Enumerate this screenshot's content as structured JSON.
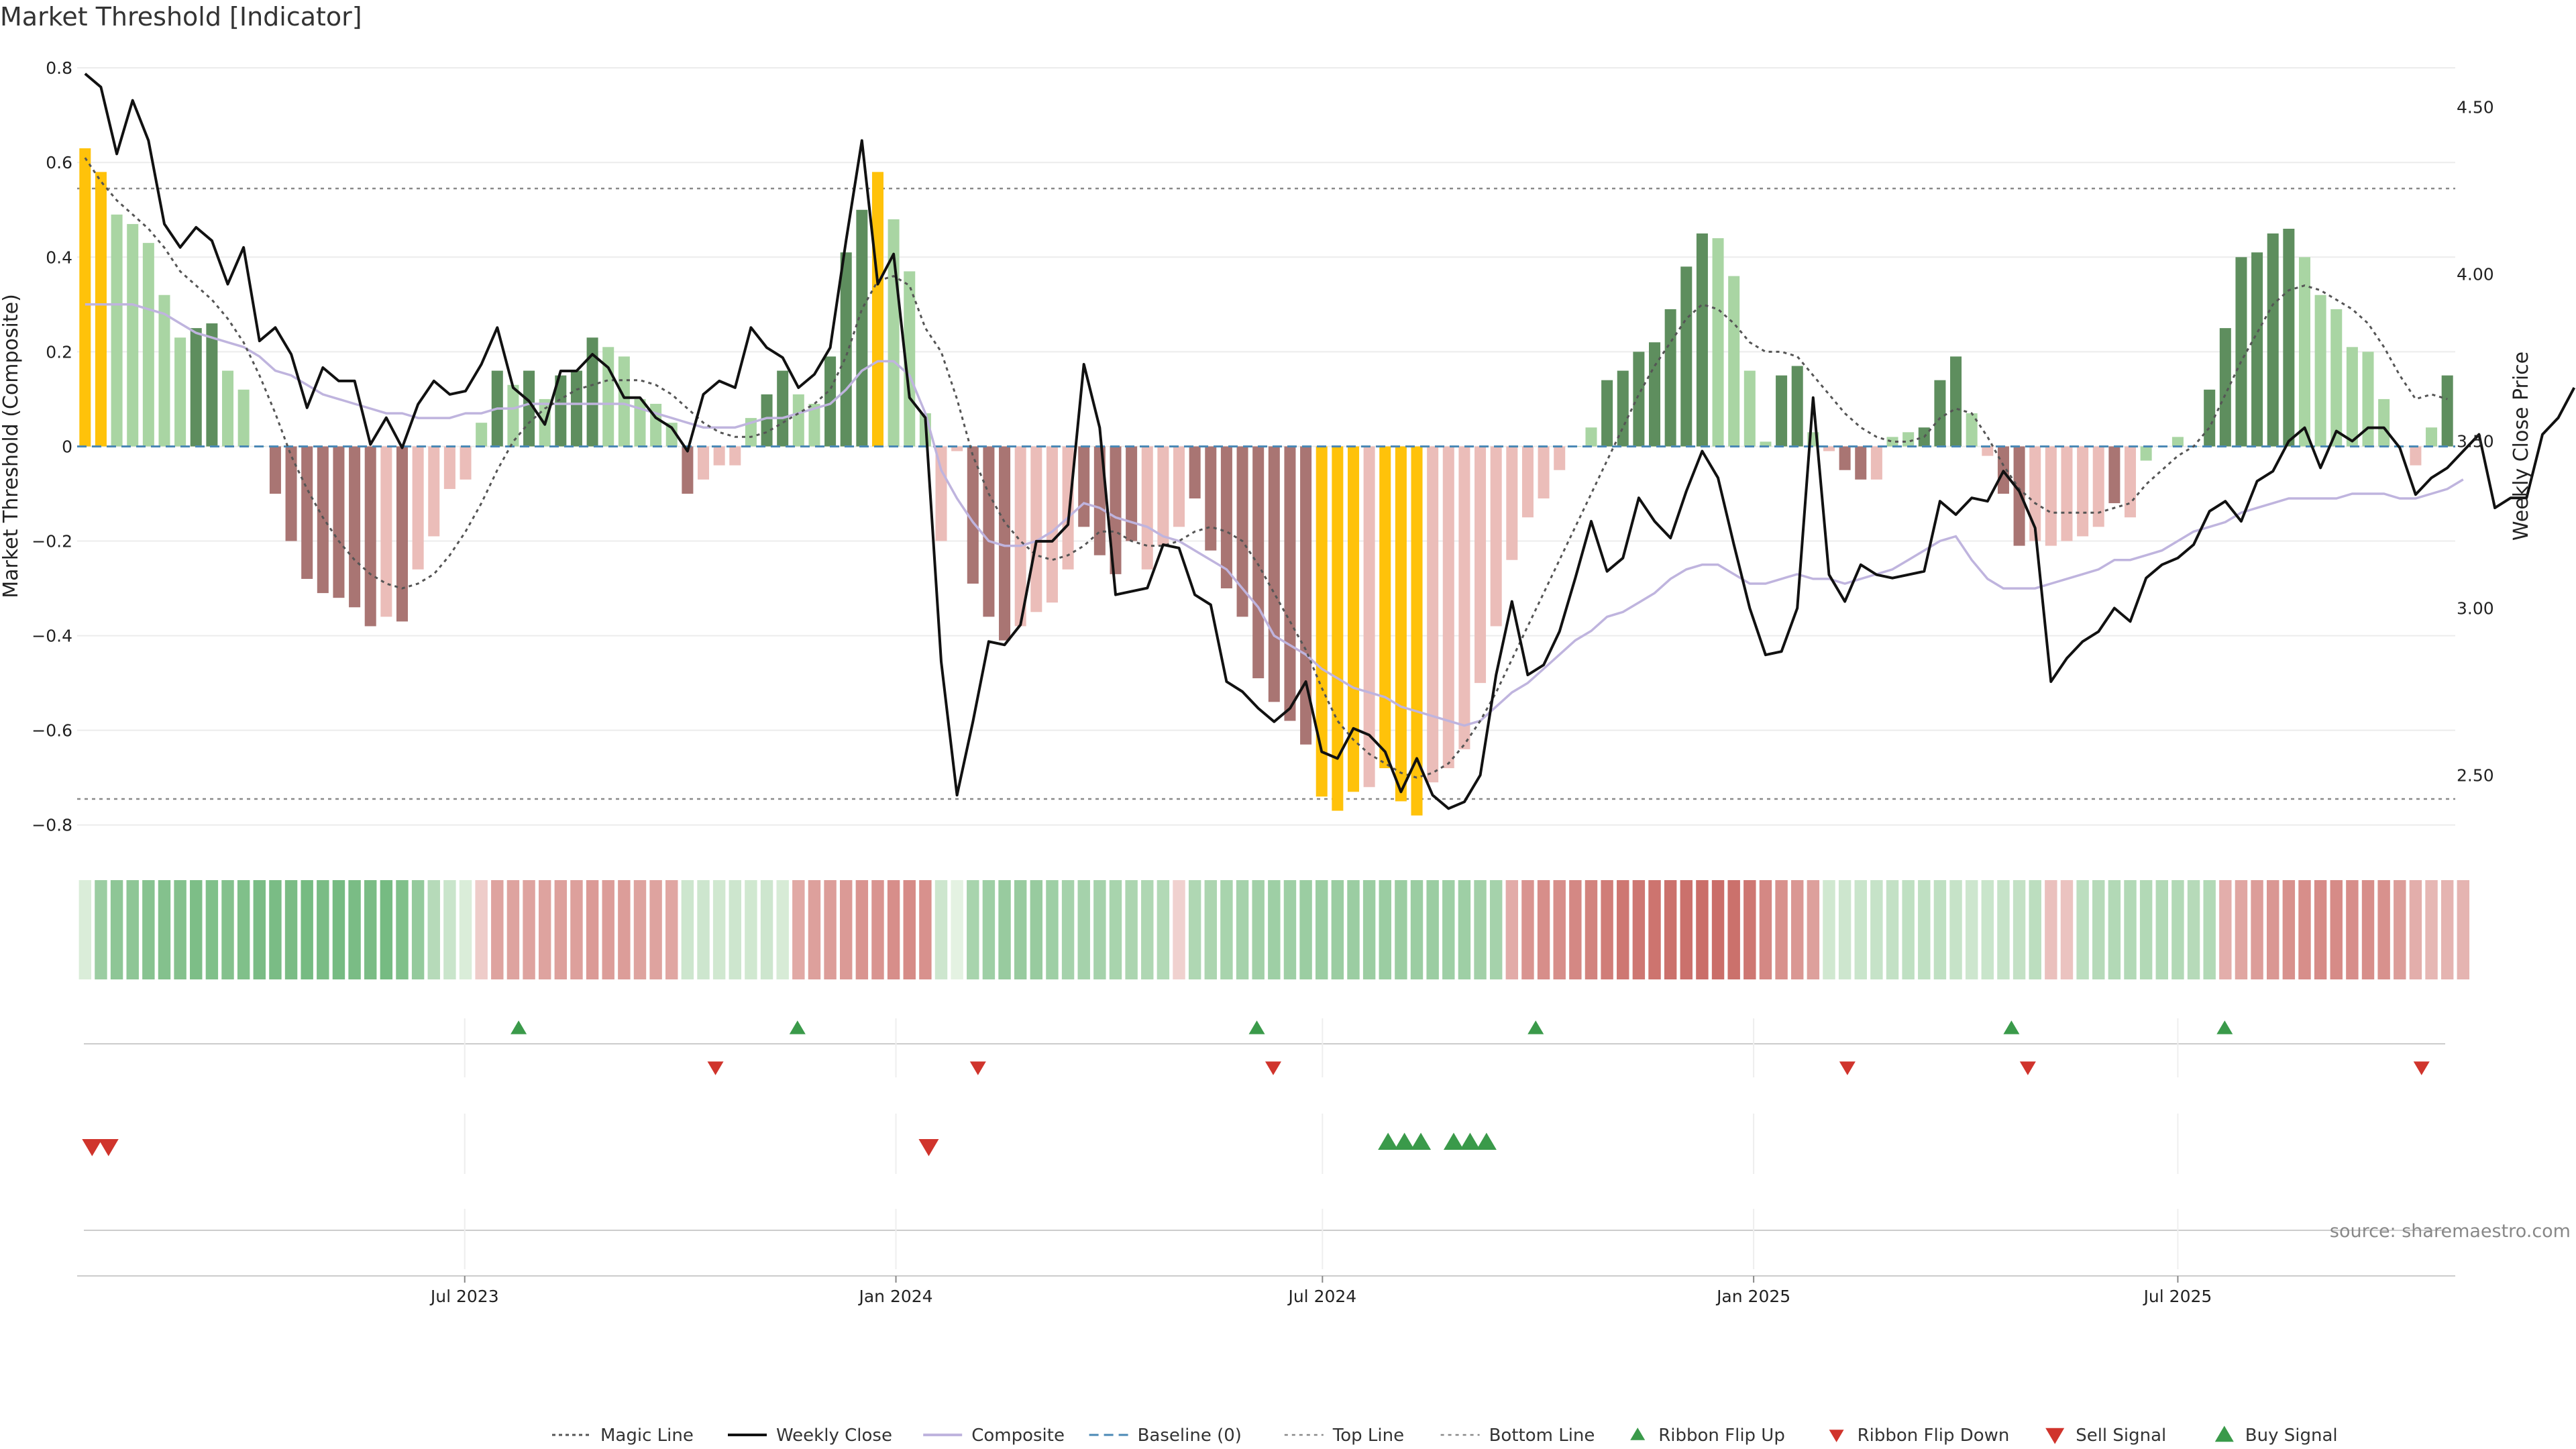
{
  "colors": {
    "yellow": "#FFC20A",
    "dark_green": "#5E8E5E",
    "light_green": "#A9D5A3",
    "dark_red": "#A97573",
    "light_red": "#EBBDB9",
    "weekly_close": "#111111",
    "composite": "#BFB4DE",
    "magic": "#555555",
    "baseline": "#4A88B5",
    "ribbon_flip_up": "#3A9A4A",
    "ribbon_flip_down": "#D0342C",
    "sell": "#D0342C",
    "buy": "#3A9A4A"
  },
  "chart_data": {
    "type": "bar",
    "title": "Market Threshold [Indicator]",
    "ylabel": "Market Threshold (Composite)",
    "y2label": "Weekly Close Price",
    "source": "source: sharemaestro.com",
    "ylim": [
      -0.85,
      0.83
    ],
    "y_ticks": [
      0.8,
      0.6,
      0.4,
      0.2,
      0,
      -0.2,
      -0.4,
      -0.6,
      -0.8
    ],
    "y_tick_labels": [
      "0.8",
      "0.6",
      "0.4",
      "0.2",
      "0",
      "−0.2",
      "−0.4",
      "−0.6",
      "−0.8"
    ],
    "y2lim": [
      2.28,
      4.66
    ],
    "y2_ticks": [
      4.5,
      4.0,
      3.5,
      3.0,
      2.5
    ],
    "y2_tick_labels": [
      "4.50",
      "4.00",
      "3.50",
      "3.00",
      "2.50"
    ],
    "x_start": "2023-01-20",
    "x_end": "2025-10-24",
    "x_ticks": [
      "2023-07-01",
      "2024-01-01",
      "2024-07-01",
      "2025-01-01",
      "2025-07-01"
    ],
    "x_tick_labels": [
      "Jul 2023",
      "Jan 2024",
      "Jul 2024",
      "Jan 2025",
      "Jul 2025"
    ],
    "top_line": 0.545,
    "bottom_line": -0.745,
    "baseline": 0,
    "composite": [
      0.63,
      0.58,
      0.49,
      0.47,
      0.43,
      0.32,
      0.23,
      0.25,
      0.26,
      0.16,
      0.12,
      0,
      -0.1,
      -0.2,
      -0.28,
      -0.31,
      -0.32,
      -0.34,
      -0.38,
      -0.36,
      -0.37,
      -0.26,
      -0.19,
      -0.09,
      -0.07,
      0.05,
      0.16,
      0.13,
      0.16,
      0.1,
      0.15,
      0.16,
      0.23,
      0.21,
      0.19,
      0.1,
      0.09,
      0.05,
      -0.1,
      -0.07,
      -0.04,
      -0.04,
      0.06,
      0.11,
      0.16,
      0.11,
      0.09,
      0.19,
      0.41,
      0.5,
      0.58,
      0.48,
      0.37,
      0.07,
      -0.2,
      -0.01,
      -0.29,
      -0.36,
      -0.41,
      -0.38,
      -0.35,
      -0.33,
      -0.26,
      -0.17,
      -0.23,
      -0.27,
      -0.2,
      -0.26,
      -0.21,
      -0.17,
      -0.11,
      -0.22,
      -0.3,
      -0.36,
      -0.49,
      -0.54,
      -0.58,
      -0.63,
      -0.74,
      -0.77,
      -0.73,
      -0.72,
      -0.68,
      -0.75,
      -0.78,
      -0.71,
      -0.68,
      -0.64,
      -0.5,
      -0.38,
      -0.24,
      -0.15,
      -0.11,
      -0.05,
      0,
      0.04,
      0.14,
      0.16,
      0.2,
      0.22,
      0.29,
      0.38,
      0.45,
      0.44,
      0.36,
      0.16,
      0.01,
      0.15,
      0.17,
      0.03,
      -0.01,
      -0.05,
      -0.07,
      -0.07,
      0.02,
      0.03,
      0.04,
      0.14,
      0.19,
      0.07,
      -0.02,
      -0.1,
      -0.21,
      -0.2,
      -0.21,
      -0.2,
      -0.19,
      -0.17,
      -0.12,
      -0.15,
      -0.03,
      0,
      0.02,
      0,
      0.12,
      0.25,
      0.4,
      0.41,
      0.45,
      0.46,
      0.4,
      0.32,
      0.29,
      0.21,
      0.2,
      0.1,
      0,
      -0.04,
      0.04,
      0.15
    ],
    "bar_colors": [
      "yellow",
      "yellow",
      "light_green",
      "light_green",
      "light_green",
      "light_green",
      "light_green",
      "dark_green",
      "dark_green",
      "light_green",
      "light_green",
      "light_green",
      "dark_red",
      "dark_red",
      "dark_red",
      "dark_red",
      "dark_red",
      "dark_red",
      "dark_red",
      "light_red",
      "dark_red",
      "light_red",
      "light_red",
      "light_red",
      "light_red",
      "light_green",
      "dark_green",
      "light_green",
      "dark_green",
      "light_green",
      "dark_green",
      "dark_green",
      "dark_green",
      "light_green",
      "light_green",
      "light_green",
      "light_green",
      "light_green",
      "dark_red",
      "light_red",
      "light_red",
      "light_red",
      "light_green",
      "dark_green",
      "dark_green",
      "light_green",
      "light_green",
      "dark_green",
      "dark_green",
      "dark_green",
      "yellow",
      "light_green",
      "light_green",
      "light_green",
      "light_red",
      "light_red",
      "dark_red",
      "dark_red",
      "dark_red",
      "light_red",
      "light_red",
      "light_red",
      "light_red",
      "dark_red",
      "dark_red",
      "dark_red",
      "dark_red",
      "light_red",
      "light_red",
      "light_red",
      "dark_red",
      "dark_red",
      "dark_red",
      "dark_red",
      "dark_red",
      "dark_red",
      "dark_red",
      "dark_red",
      "yellow",
      "yellow",
      "yellow",
      "light_red",
      "yellow",
      "yellow",
      "yellow",
      "light_red",
      "light_red",
      "light_red",
      "light_red",
      "light_red",
      "light_red",
      "light_red",
      "light_red",
      "light_red",
      "light_green",
      "light_green",
      "dark_green",
      "dark_green",
      "dark_green",
      "dark_green",
      "dark_green",
      "dark_green",
      "dark_green",
      "light_green",
      "light_green",
      "light_green",
      "light_green",
      "dark_green",
      "dark_green",
      "light_green",
      "light_red",
      "dark_red",
      "dark_red",
      "light_red",
      "light_green",
      "light_green",
      "dark_green",
      "dark_green",
      "dark_green",
      "light_green",
      "light_red",
      "dark_red",
      "dark_red",
      "light_red",
      "light_red",
      "light_red",
      "light_red",
      "light_red",
      "dark_red",
      "light_red",
      "light_green",
      "light_green",
      "light_green",
      "light_green",
      "dark_green",
      "dark_green",
      "dark_green",
      "dark_green",
      "dark_green",
      "dark_green",
      "light_green",
      "light_green",
      "light_green",
      "light_green",
      "light_green",
      "light_green",
      "light_green",
      "light_red",
      "light_green",
      "dark_green"
    ],
    "composite_smooth": [
      0.3,
      0.3,
      0.3,
      0.3,
      0.29,
      0.28,
      0.26,
      0.24,
      0.23,
      0.22,
      0.21,
      0.19,
      0.16,
      0.15,
      0.13,
      0.11,
      0.1,
      0.09,
      0.08,
      0.07,
      0.07,
      0.06,
      0.06,
      0.06,
      0.07,
      0.07,
      0.08,
      0.08,
      0.09,
      0.09,
      0.09,
      0.09,
      0.09,
      0.09,
      0.09,
      0.08,
      0.07,
      0.06,
      0.05,
      0.04,
      0.04,
      0.04,
      0.05,
      0.06,
      0.06,
      0.07,
      0.08,
      0.09,
      0.12,
      0.16,
      0.18,
      0.18,
      0.15,
      0.07,
      -0.05,
      -0.11,
      -0.16,
      -0.2,
      -0.21,
      -0.21,
      -0.2,
      -0.18,
      -0.15,
      -0.12,
      -0.13,
      -0.15,
      -0.16,
      -0.17,
      -0.19,
      -0.2,
      -0.22,
      -0.24,
      -0.26,
      -0.3,
      -0.34,
      -0.4,
      -0.42,
      -0.44,
      -0.47,
      -0.49,
      -0.51,
      -0.52,
      -0.53,
      -0.55,
      -0.56,
      -0.57,
      -0.58,
      -0.59,
      -0.58,
      -0.55,
      -0.52,
      -0.5,
      -0.47,
      -0.44,
      -0.41,
      -0.39,
      -0.36,
      -0.35,
      -0.33,
      -0.31,
      -0.28,
      -0.26,
      -0.25,
      -0.25,
      -0.27,
      -0.29,
      -0.29,
      -0.28,
      -0.27,
      -0.28,
      -0.28,
      -0.29,
      -0.28,
      -0.27,
      -0.26,
      -0.24,
      -0.22,
      -0.2,
      -0.19,
      -0.24,
      -0.28,
      -0.3,
      -0.3,
      -0.3,
      -0.29,
      -0.28,
      -0.27,
      -0.26,
      -0.24,
      -0.24,
      -0.23,
      -0.22,
      -0.2,
      -0.18,
      -0.17,
      -0.16,
      -0.14,
      -0.13,
      -0.12,
      -0.11,
      -0.11,
      -0.11,
      -0.11,
      -0.1,
      -0.1,
      -0.1,
      -0.11,
      -0.11,
      -0.1,
      -0.09,
      -0.07
    ],
    "magic_line": [
      0.61,
      0.56,
      0.52,
      0.49,
      0.46,
      0.42,
      0.37,
      0.34,
      0.31,
      0.27,
      0.22,
      0.15,
      0.07,
      -0.02,
      -0.09,
      -0.15,
      -0.2,
      -0.24,
      -0.27,
      -0.29,
      -0.3,
      -0.29,
      -0.27,
      -0.23,
      -0.18,
      -0.12,
      -0.05,
      0.01,
      0.05,
      0.08,
      0.1,
      0.12,
      0.13,
      0.14,
      0.14,
      0.14,
      0.13,
      0.11,
      0.08,
      0.05,
      0.03,
      0.02,
      0.02,
      0.03,
      0.05,
      0.07,
      0.09,
      0.12,
      0.19,
      0.29,
      0.35,
      0.36,
      0.34,
      0.25,
      0.2,
      0.1,
      -0.02,
      -0.1,
      -0.16,
      -0.2,
      -0.23,
      -0.24,
      -0.23,
      -0.21,
      -0.18,
      -0.18,
      -0.2,
      -0.21,
      -0.21,
      -0.2,
      -0.18,
      -0.17,
      -0.18,
      -0.2,
      -0.25,
      -0.31,
      -0.37,
      -0.43,
      -0.51,
      -0.58,
      -0.62,
      -0.65,
      -0.67,
      -0.69,
      -0.7,
      -0.69,
      -0.67,
      -0.63,
      -0.58,
      -0.52,
      -0.45,
      -0.38,
      -0.31,
      -0.24,
      -0.17,
      -0.1,
      -0.03,
      0.04,
      0.11,
      0.17,
      0.22,
      0.27,
      0.3,
      0.29,
      0.26,
      0.22,
      0.2,
      0.2,
      0.19,
      0.15,
      0.11,
      0.07,
      0.04,
      0.02,
      0.01,
      0.01,
      0.02,
      0.06,
      0.08,
      0.07,
      0.02,
      -0.04,
      -0.09,
      -0.12,
      -0.14,
      -0.14,
      -0.14,
      -0.14,
      -0.13,
      -0.12,
      -0.08,
      -0.05,
      -0.02,
      0,
      0.04,
      0.11,
      0.18,
      0.24,
      0.3,
      0.33,
      0.34,
      0.33,
      0.31,
      0.29,
      0.26,
      0.21,
      0.15,
      0.1,
      0.11,
      0.1
    ],
    "weekly_close": [
      4.6,
      4.56,
      4.36,
      4.52,
      4.4,
      4.15,
      4.08,
      4.14,
      4.1,
      3.97,
      4.08,
      3.8,
      3.84,
      3.76,
      3.6,
      3.72,
      3.68,
      3.68,
      3.49,
      3.57,
      3.48,
      3.61,
      3.68,
      3.64,
      3.65,
      3.73,
      3.84,
      3.66,
      3.62,
      3.55,
      3.71,
      3.71,
      3.76,
      3.72,
      3.63,
      3.63,
      3.57,
      3.54,
      3.47,
      3.64,
      3.68,
      3.66,
      3.84,
      3.78,
      3.75,
      3.66,
      3.7,
      3.78,
      4.1,
      4.4,
      3.97,
      4.06,
      3.63,
      3.57,
      2.84,
      2.44,
      2.66,
      2.9,
      2.89,
      2.95,
      3.2,
      3.2,
      3.25,
      3.73,
      3.54,
      3.04,
      3.05,
      3.06,
      3.19,
      3.18,
      3.04,
      3.01,
      2.78,
      2.75,
      2.7,
      2.66,
      2.7,
      2.78,
      2.57,
      2.55,
      2.64,
      2.62,
      2.57,
      2.45,
      2.55,
      2.44,
      2.4,
      2.42,
      2.5,
      2.8,
      3.02,
      2.8,
      2.83,
      2.93,
      3.09,
      3.26,
      3.11,
      3.15,
      3.33,
      3.26,
      3.21,
      3.35,
      3.47,
      3.39,
      3.19,
      3.0,
      2.86,
      2.87,
      3.0,
      3.63,
      3.1,
      3.02,
      3.13,
      3.1,
      3.09,
      3.1,
      3.11,
      3.32,
      3.28,
      3.33,
      3.32,
      3.41,
      3.35,
      3.24,
      2.78,
      2.85,
      2.9,
      2.93,
      3.0,
      2.96,
      3.09,
      3.13,
      3.15,
      3.19,
      3.29,
      3.32,
      3.26,
      3.38,
      3.41,
      3.5,
      3.54,
      3.42,
      3.53,
      3.5,
      3.54,
      3.54,
      3.48,
      3.34,
      3.39,
      3.42,
      3.47,
      3.52,
      3.3,
      3.33,
      3.33,
      3.52,
      3.57,
      3.66
    ],
    "ribbon": [
      0.06,
      0.44,
      0.52,
      0.52,
      0.56,
      0.58,
      0.58,
      0.62,
      0.6,
      0.58,
      0.6,
      0.64,
      0.64,
      0.64,
      0.66,
      0.64,
      0.66,
      0.64,
      0.64,
      0.66,
      0.6,
      0.48,
      0.28,
      0.16,
      0.06,
      -0.14,
      -0.42,
      -0.42,
      -0.42,
      -0.42,
      -0.44,
      -0.44,
      -0.48,
      -0.46,
      -0.46,
      -0.42,
      -0.42,
      -0.4,
      0.14,
      0.14,
      0.12,
      0.14,
      0.12,
      0.14,
      0.08,
      -0.38,
      -0.44,
      -0.46,
      -0.48,
      -0.52,
      -0.52,
      -0.56,
      -0.58,
      -0.54,
      0.14,
      0,
      0.36,
      0.42,
      0.46,
      0.46,
      0.46,
      0.42,
      0.38,
      0.38,
      0.38,
      0.36,
      0.34,
      0.32,
      0.3,
      -0.1,
      0.32,
      0.34,
      0.36,
      0.38,
      0.4,
      0.42,
      0.42,
      0.44,
      0.44,
      0.44,
      0.44,
      0.44,
      0.44,
      0.44,
      0.44,
      0.44,
      0.42,
      0.42,
      0.4,
      0.38,
      -0.36,
      -0.52,
      -0.56,
      -0.56,
      -0.6,
      -0.64,
      -0.68,
      -0.72,
      -0.72,
      -0.74,
      -0.76,
      -0.76,
      -0.78,
      -0.78,
      -0.76,
      -0.72,
      -0.6,
      -0.54,
      -0.5,
      -0.44,
      0.12,
      0.14,
      0.16,
      0.18,
      0.2,
      0.22,
      0.22,
      0.22,
      0.18,
      0.14,
      0.16,
      0.18,
      0.2,
      0.24,
      -0.22,
      -0.2,
      0.24,
      0.28,
      0.3,
      0.3,
      0.3,
      0.3,
      0.3,
      0.28,
      0.3,
      -0.34,
      -0.4,
      -0.46,
      -0.5,
      -0.54,
      -0.56,
      -0.58,
      -0.58,
      -0.56,
      -0.56,
      -0.54,
      -0.46,
      -0.34,
      -0.28,
      -0.3,
      -0.3
    ],
    "ribbon_flip_up_dates": [
      "2023-07-24",
      "2023-11-20",
      "2024-06-03",
      "2024-09-30",
      "2025-04-21",
      "2025-07-21"
    ],
    "ribbon_flip_down_dates": [
      "2023-10-16",
      "2024-02-05",
      "2024-06-10",
      "2025-02-10",
      "2025-04-28",
      "2025-10-13"
    ],
    "sell_signal_dates": [
      "2023-01-23",
      "2023-01-30",
      "2024-01-15"
    ],
    "buy_signal_dates": [
      "2024-07-29",
      "2024-08-05",
      "2024-08-12",
      "2024-08-26",
      "2024-09-02",
      "2024-09-09"
    ],
    "legend": [
      "Magic Line",
      "Weekly Close",
      "Composite",
      "Baseline (0)",
      "Top Line",
      "Bottom Line",
      "Ribbon Flip Up",
      "Ribbon Flip Down",
      "Sell Signal",
      "Buy Signal"
    ],
    "legend_position": "bottom-center",
    "grid": true
  }
}
